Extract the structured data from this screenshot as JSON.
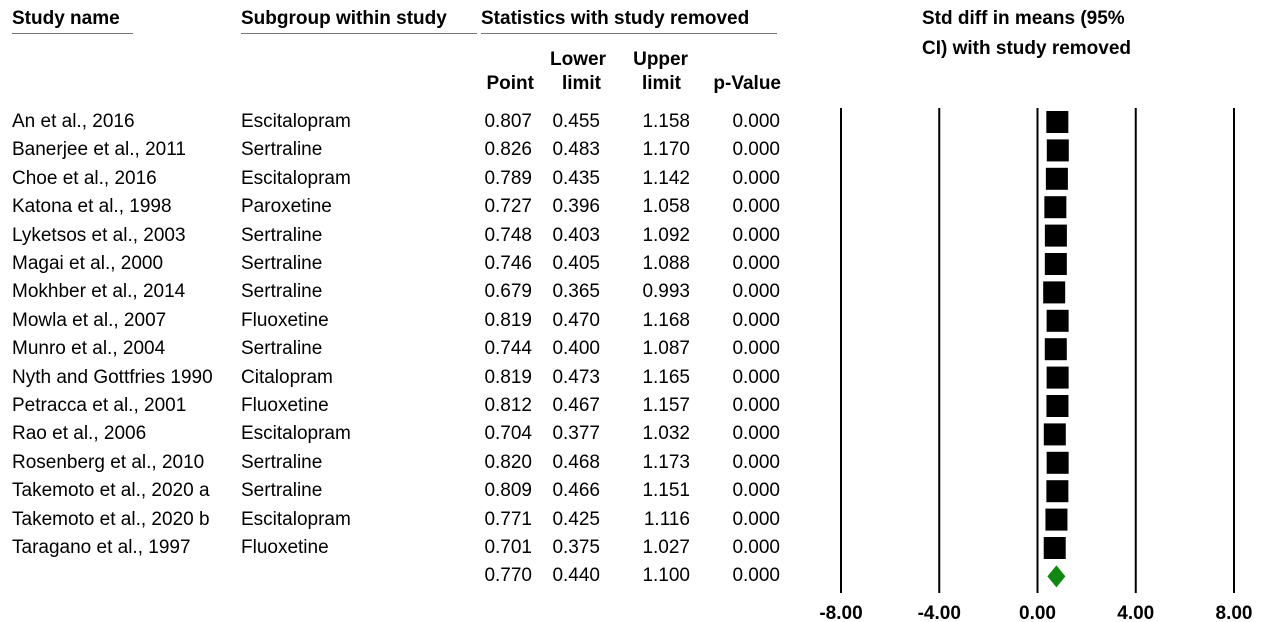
{
  "headers": {
    "study_name": "Study name",
    "subgroup": "Subgroup within study",
    "stats_group": "Statistics with study removed",
    "plot_title_line1": "Std diff in means (95%",
    "plot_title_line2": "CI) with study removed",
    "point": "Point",
    "lower_line1": "Lower",
    "lower_line2": "limit",
    "upper_line1": "Upper",
    "upper_line2": "limit",
    "pvalue": "p-Value"
  },
  "rows": [
    {
      "study": "An et al., 2016",
      "subgroup": "Escitalopram",
      "point": "0.807",
      "lower": "0.455",
      "upper": "1.158",
      "p": "0.000"
    },
    {
      "study": "Banerjee et al., 2011",
      "subgroup": "Sertraline",
      "point": "0.826",
      "lower": "0.483",
      "upper": "1.170",
      "p": "0.000"
    },
    {
      "study": "Choe et al., 2016",
      "subgroup": "Escitalopram",
      "point": "0.789",
      "lower": "0.435",
      "upper": "1.142",
      "p": "0.000"
    },
    {
      "study": "Katona et al., 1998",
      "subgroup": "Paroxetine",
      "point": "0.727",
      "lower": "0.396",
      "upper": "1.058",
      "p": "0.000"
    },
    {
      "study": "Lyketsos et al., 2003",
      "subgroup": "Sertraline",
      "point": "0.748",
      "lower": "0.403",
      "upper": "1.092",
      "p": "0.000"
    },
    {
      "study": "Magai et al., 2000",
      "subgroup": "Sertraline",
      "point": "0.746",
      "lower": "0.405",
      "upper": "1.088",
      "p": "0.000"
    },
    {
      "study": "Mokhber et al., 2014",
      "subgroup": "Sertraline",
      "point": "0.679",
      "lower": "0.365",
      "upper": "0.993",
      "p": "0.000"
    },
    {
      "study": "Mowla et al., 2007",
      "subgroup": "Fluoxetine",
      "point": "0.819",
      "lower": "0.470",
      "upper": "1.168",
      "p": "0.000"
    },
    {
      "study": "Munro et al., 2004",
      "subgroup": "Sertraline",
      "point": "0.744",
      "lower": "0.400",
      "upper": "1.087",
      "p": "0.000"
    },
    {
      "study": "Nyth and Gottfries 1990",
      "subgroup": "Citalopram",
      "point": "0.819",
      "lower": "0.473",
      "upper": "1.165",
      "p": "0.000"
    },
    {
      "study": "Petracca et al., 2001",
      "subgroup": "Fluoxetine",
      "point": "0.812",
      "lower": "0.467",
      "upper": "1.157",
      "p": "0.000"
    },
    {
      "study": "Rao et al., 2006",
      "subgroup": "Escitalopram",
      "point": "0.704",
      "lower": "0.377",
      "upper": "1.032",
      "p": "0.000"
    },
    {
      "study": "Rosenberg et al., 2010",
      "subgroup": "Sertraline",
      "point": "0.820",
      "lower": "0.468",
      "upper": "1.173",
      "p": "0.000"
    },
    {
      "study": "Takemoto et al., 2020 a",
      "subgroup": "Sertraline",
      "point": "0.809",
      "lower": "0.466",
      "upper": "1.151",
      "p": "0.000"
    },
    {
      "study": "Takemoto et al., 2020 b",
      "subgroup": "Escitalopram",
      "point": "0.771",
      "lower": "0.425",
      "upper": "1.116",
      "p": "0.000"
    },
    {
      "study": "Taragano et al., 1997",
      "subgroup": "Fluoxetine",
      "point": "0.701",
      "lower": "0.375",
      "upper": "1.027",
      "p": "0.000"
    }
  ],
  "summary": {
    "point": "0.770",
    "lower": "0.440",
    "upper": "1.100",
    "p": "0.000"
  },
  "colors": {
    "marker": "#000000",
    "summary_diamond": "#118811"
  },
  "chart_data": {
    "type": "forest",
    "x_ticks": [
      "-8.00",
      "-4.00",
      "0.00",
      "4.00",
      "8.00"
    ],
    "xlim": [
      -8,
      8
    ],
    "series": [
      {
        "values": [
          0.807,
          0.826,
          0.789,
          0.727,
          0.748,
          0.746,
          0.679,
          0.819,
          0.744,
          0.819,
          0.812,
          0.704,
          0.82,
          0.809,
          0.771,
          0.701
        ]
      }
    ],
    "summary_value": 0.77
  }
}
